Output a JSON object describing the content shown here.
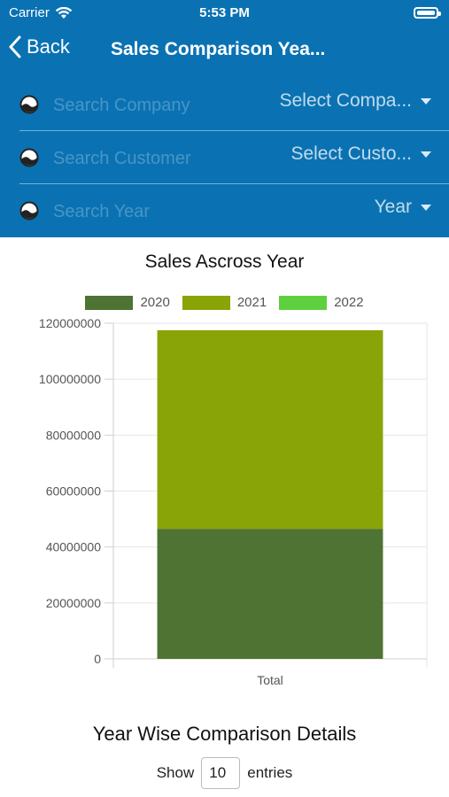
{
  "status": {
    "carrier": "Carrier",
    "time": "5:53 PM"
  },
  "nav": {
    "back_label": "Back",
    "title": "Sales Comparison Yea..."
  },
  "filters": [
    {
      "placeholder": "Search Company",
      "select_label": "Select Compa..."
    },
    {
      "placeholder": "Search Customer",
      "select_label": "Select Custo..."
    },
    {
      "placeholder": "Search Year",
      "select_label": "Year"
    }
  ],
  "chart_title": "Sales Ascross Year",
  "chart_data": {
    "type": "bar",
    "stacked": true,
    "title": "Sales Ascross Year",
    "categories": [
      "Total"
    ],
    "series": [
      {
        "name": "2020",
        "values": [
          46500000
        ],
        "color": "#4f7332"
      },
      {
        "name": "2021",
        "values": [
          71000000
        ],
        "color": "#88a406"
      },
      {
        "name": "2022",
        "values": [
          0
        ],
        "color": "#5ed03f"
      }
    ],
    "ylim": [
      0,
      120000000
    ],
    "yticks": [
      0,
      20000000,
      40000000,
      60000000,
      80000000,
      100000000,
      120000000
    ],
    "ytick_labels": [
      "0",
      "20000000",
      "40000000",
      "60000000",
      "80000000",
      "100000000",
      "120000000"
    ],
    "grid": true,
    "legend_position": "top"
  },
  "details": {
    "title": "Year Wise Comparison Details",
    "show_label": "Show",
    "entries_value": "10",
    "entries_label": "entries"
  }
}
